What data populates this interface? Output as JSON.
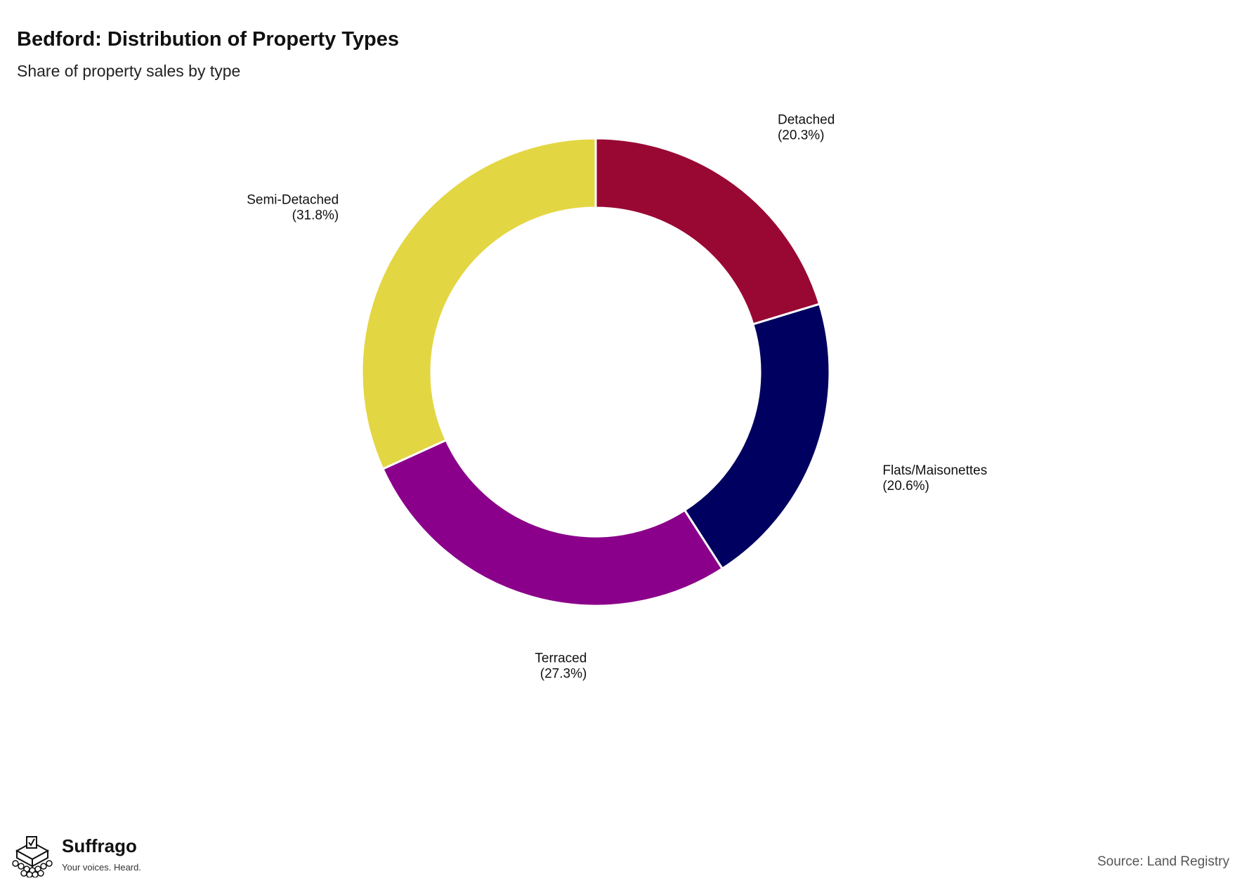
{
  "title": "Bedford: Distribution of Property Types",
  "subtitle": "Share of property sales by type",
  "source": "Source: Land Registry",
  "brand": {
    "name": "Suffrago",
    "tagline": "Your voices. Heard.",
    "logo_icon": "ballot-box-icon"
  },
  "chart_data": {
    "type": "pie",
    "donut": true,
    "unit": "%",
    "slices": [
      {
        "label": "Detached",
        "value": 20.3,
        "display": "(20.3%)",
        "color": "#990833"
      },
      {
        "label": "Flats/Maisonettes",
        "value": 20.6,
        "display": "(20.6%)",
        "color": "#000060"
      },
      {
        "label": "Terraced",
        "value": 27.3,
        "display": "(27.3%)",
        "color": "#8a008a"
      },
      {
        "label": "Semi-Detached",
        "value": 31.8,
        "display": "(31.8%)",
        "color": "#e3d643"
      }
    ]
  }
}
